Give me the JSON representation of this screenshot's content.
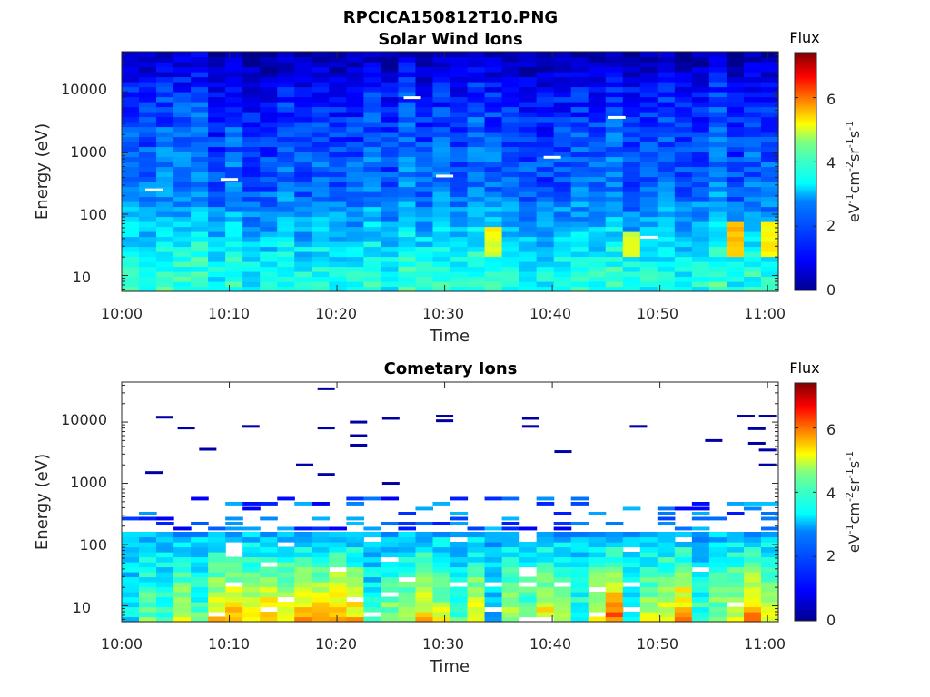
{
  "figure_title": "RPCICA150812T10.PNG",
  "colormap": [
    "#00008f",
    "#0000ff",
    "#0080ff",
    "#00ffff",
    "#80ff80",
    "#ffff00",
    "#ff8000",
    "#ff0000",
    "#800000"
  ],
  "chart_data": [
    {
      "type": "heatmap",
      "title": "Solar Wind Ions",
      "xlabel": "Time",
      "ylabel": "Energy (eV)",
      "xlim": [
        "10:00",
        "11:01"
      ],
      "ylim": [
        5.5,
        45000
      ],
      "yscale": "log",
      "x_ticks": [
        "10:00",
        "10:10",
        "10:20",
        "10:30",
        "10:40",
        "10:50",
        "11:00"
      ],
      "y_ticks": [
        "10",
        "100",
        "1000",
        "10000"
      ],
      "colorbar": {
        "title": "Flux",
        "label": "eV-1 cm-2 sr-1 s-1",
        "range": [
          0,
          7.4
        ],
        "ticks": [
          "0",
          "2",
          "4",
          "6"
        ]
      },
      "time_bins": 38,
      "energy_bins": 48,
      "white_marks": [
        {
          "time": "10:03",
          "energy_eV": 250
        },
        {
          "time": "10:10",
          "energy_eV": 370
        },
        {
          "time": "10:27",
          "energy_eV": 8000
        },
        {
          "time": "10:30",
          "energy_eV": 420
        },
        {
          "time": "10:40",
          "energy_eV": 850
        },
        {
          "time": "10:46",
          "energy_eV": 3800
        },
        {
          "time": "10:49",
          "energy_eV": 42
        }
      ],
      "flux_profile_by_energy": [
        {
          "energy_eV": 6,
          "flux": 3.0
        },
        {
          "energy_eV": 10,
          "flux": 3.0
        },
        {
          "energy_eV": 30,
          "flux": 2.6
        },
        {
          "energy_eV": 100,
          "flux": 2.1
        },
        {
          "energy_eV": 300,
          "flux": 1.7
        },
        {
          "energy_eV": 1000,
          "flux": 1.6
        },
        {
          "energy_eV": 3000,
          "flux": 1.4
        },
        {
          "energy_eV": 10000,
          "flux": 1.1
        },
        {
          "energy_eV": 20000,
          "flux": 0.7
        },
        {
          "energy_eV": 45000,
          "flux": 0.3
        }
      ],
      "enhanced_regions": [
        {
          "time": "10:35",
          "energy_range_eV": [
            20,
            60
          ],
          "flux": 4.5
        },
        {
          "time": "10:47",
          "energy_range_eV": [
            20,
            50
          ],
          "flux": 4.3
        },
        {
          "time": "10:57",
          "energy_range_eV": [
            20,
            80
          ],
          "flux": 5.0
        },
        {
          "time": "11:00",
          "energy_range_eV": [
            20,
            70
          ],
          "flux": 4.6
        }
      ]
    },
    {
      "type": "heatmap",
      "title": "Cometary Ions",
      "xlabel": "Time",
      "ylabel": "Energy (eV)",
      "xlim": [
        "10:00",
        "11:01"
      ],
      "ylim": [
        5.5,
        45000
      ],
      "yscale": "log",
      "x_ticks": [
        "10:00",
        "10:10",
        "10:20",
        "10:30",
        "10:40",
        "10:50",
        "11:00"
      ],
      "y_ticks": [
        "10",
        "100",
        "1000",
        "10000"
      ],
      "colorbar": {
        "title": "Flux",
        "label": "eV-1 cm-2 sr-1 s-1",
        "range": [
          0,
          7.4
        ],
        "ticks": [
          "0",
          "2",
          "4",
          "6"
        ]
      },
      "time_bins": 38,
      "energy_bins": 48,
      "dense_cutoff_eV": 160,
      "columns_flux_at_10eV": [
        2.6,
        3.6,
        3.3,
        4.4,
        3.4,
        4.9,
        5.4,
        4.8,
        5.2,
        5.0,
        5.4,
        5.2,
        5.6,
        5.1,
        2.9,
        3.9,
        4.2,
        5.0,
        4.4,
        3.3,
        4.6,
        2.3,
        4.0,
        3.8,
        4.9,
        3.9,
        3.0,
        4.7,
        5.9,
        3.1,
        4.3,
        4.8,
        5.6,
        3.3,
        3.9,
        4.5,
        5.9,
        4.6
      ],
      "sparse_high_energy_marks": [
        {
          "time": "10:04",
          "energy_eV": 12000
        },
        {
          "time": "10:03",
          "energy_eV": 1500
        },
        {
          "time": "10:06",
          "energy_eV": 8000
        },
        {
          "time": "10:08",
          "energy_eV": 3600
        },
        {
          "time": "10:12",
          "energy_eV": 8500
        },
        {
          "time": "10:17",
          "energy_eV": 2000
        },
        {
          "time": "10:19",
          "energy_eV": 35000
        },
        {
          "time": "10:19",
          "energy_eV": 8000
        },
        {
          "time": "10:19",
          "energy_eV": 1400
        },
        {
          "time": "10:22",
          "energy_eV": 10000
        },
        {
          "time": "10:22",
          "energy_eV": 6000
        },
        {
          "time": "10:22",
          "energy_eV": 4200
        },
        {
          "time": "10:25",
          "energy_eV": 11500
        },
        {
          "time": "10:25",
          "energy_eV": 1000
        },
        {
          "time": "10:30",
          "energy_eV": 12500
        },
        {
          "time": "10:30",
          "energy_eV": 10500
        },
        {
          "time": "10:38",
          "energy_eV": 11500
        },
        {
          "time": "10:38",
          "energy_eV": 8500
        },
        {
          "time": "10:41",
          "energy_eV": 3300
        },
        {
          "time": "10:48",
          "energy_eV": 8500
        },
        {
          "time": "10:55",
          "energy_eV": 5000
        },
        {
          "time": "10:58",
          "energy_eV": 12500
        },
        {
          "time": "10:59",
          "energy_eV": 7800
        },
        {
          "time": "10:59",
          "energy_eV": 4500
        },
        {
          "time": "11:00",
          "energy_eV": 12500
        },
        {
          "time": "11:00",
          "energy_eV": 3500
        },
        {
          "time": "11:00",
          "energy_eV": 2000
        }
      ]
    }
  ]
}
